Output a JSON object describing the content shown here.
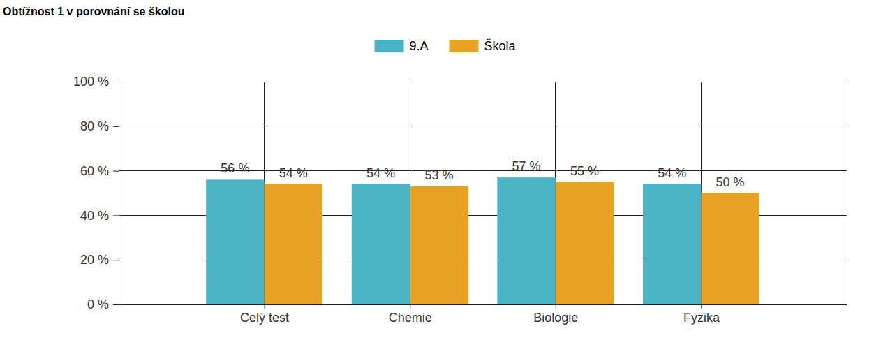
{
  "chart_data": {
    "type": "bar",
    "title": "Obtížnost 1 v porovnání se školou",
    "categories": [
      "Celý test",
      "Chemie",
      "Biologie",
      "Fyzika"
    ],
    "series": [
      {
        "name": "9.A",
        "color": "#4ab3c6",
        "values": [
          56,
          54,
          57,
          54
        ],
        "value_labels": [
          "56 %",
          "54 %",
          "57 %",
          "54 %"
        ]
      },
      {
        "name": "Škola",
        "color": "#e8a325",
        "values": [
          54,
          53,
          55,
          50
        ],
        "value_labels": [
          "54 %",
          "53 %",
          "55 %",
          "50 %"
        ]
      }
    ],
    "ylim": [
      0,
      100
    ],
    "yticks": [
      {
        "value": 0,
        "label": "0 %"
      },
      {
        "value": 20,
        "label": "20 %"
      },
      {
        "value": 40,
        "label": "40 %"
      },
      {
        "value": 60,
        "label": "60 %"
      },
      {
        "value": 80,
        "label": "80 %"
      },
      {
        "value": 100,
        "label": "100 %"
      }
    ],
    "grid": true,
    "legend": "top",
    "data_labels": true
  }
}
